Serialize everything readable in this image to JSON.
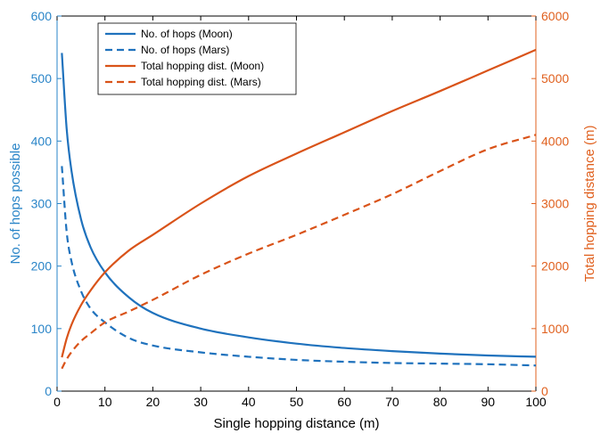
{
  "chart_data": {
    "type": "line",
    "xlabel": "Single hopping distance (m)",
    "ylabel_left": "No. of hops possible",
    "ylabel_right": "Total hopping distance (m)",
    "xlim": [
      0,
      100
    ],
    "ylim_left": [
      0,
      600
    ],
    "ylim_right": [
      0,
      6000
    ],
    "x_ticks": [
      0,
      10,
      20,
      30,
      40,
      50,
      60,
      70,
      80,
      90,
      100
    ],
    "y_ticks_left": [
      0,
      100,
      200,
      300,
      400,
      500,
      600
    ],
    "y_ticks_right": [
      0,
      1000,
      2000,
      3000,
      4000,
      5000,
      6000
    ],
    "grid": false,
    "legend_position": "top-left",
    "colors": {
      "left_axis": "#2a85c8",
      "right_axis": "#e0601e",
      "moon_hops": "#1f72bd",
      "mars_hops": "#1f72bd",
      "moon_total": "#d95319",
      "mars_total": "#d95319"
    },
    "x": [
      1,
      2,
      3,
      5,
      7,
      10,
      15,
      20,
      30,
      40,
      50,
      60,
      70,
      80,
      90,
      100
    ],
    "series": [
      {
        "name": "No. of hops (Moon)",
        "axis": "left",
        "style": "solid",
        "values": [
          541,
          420,
          353,
          275,
          230,
          190,
          150,
          125,
          100,
          86,
          76,
          69,
          64,
          60,
          57,
          55
        ]
      },
      {
        "name": "No. of hops (Mars)",
        "axis": "left",
        "style": "dashed",
        "values": [
          360,
          255,
          208,
          160,
          132,
          110,
          85,
          73,
          62,
          55,
          50,
          47,
          45,
          44,
          43,
          41
        ]
      },
      {
        "name": "Total hopping dist. (Moon)",
        "axis": "right",
        "style": "solid",
        "values": [
          541,
          840,
          1060,
          1375,
          1610,
          1900,
          2250,
          2500,
          3000,
          3440,
          3800,
          4140,
          4480,
          4800,
          5130,
          5460
        ]
      },
      {
        "name": "Total hopping dist. (Mars)",
        "axis": "right",
        "style": "dashed",
        "values": [
          360,
          510,
          624,
          800,
          924,
          1100,
          1275,
          1460,
          1860,
          2200,
          2500,
          2820,
          3150,
          3520,
          3870,
          4100
        ]
      }
    ]
  }
}
